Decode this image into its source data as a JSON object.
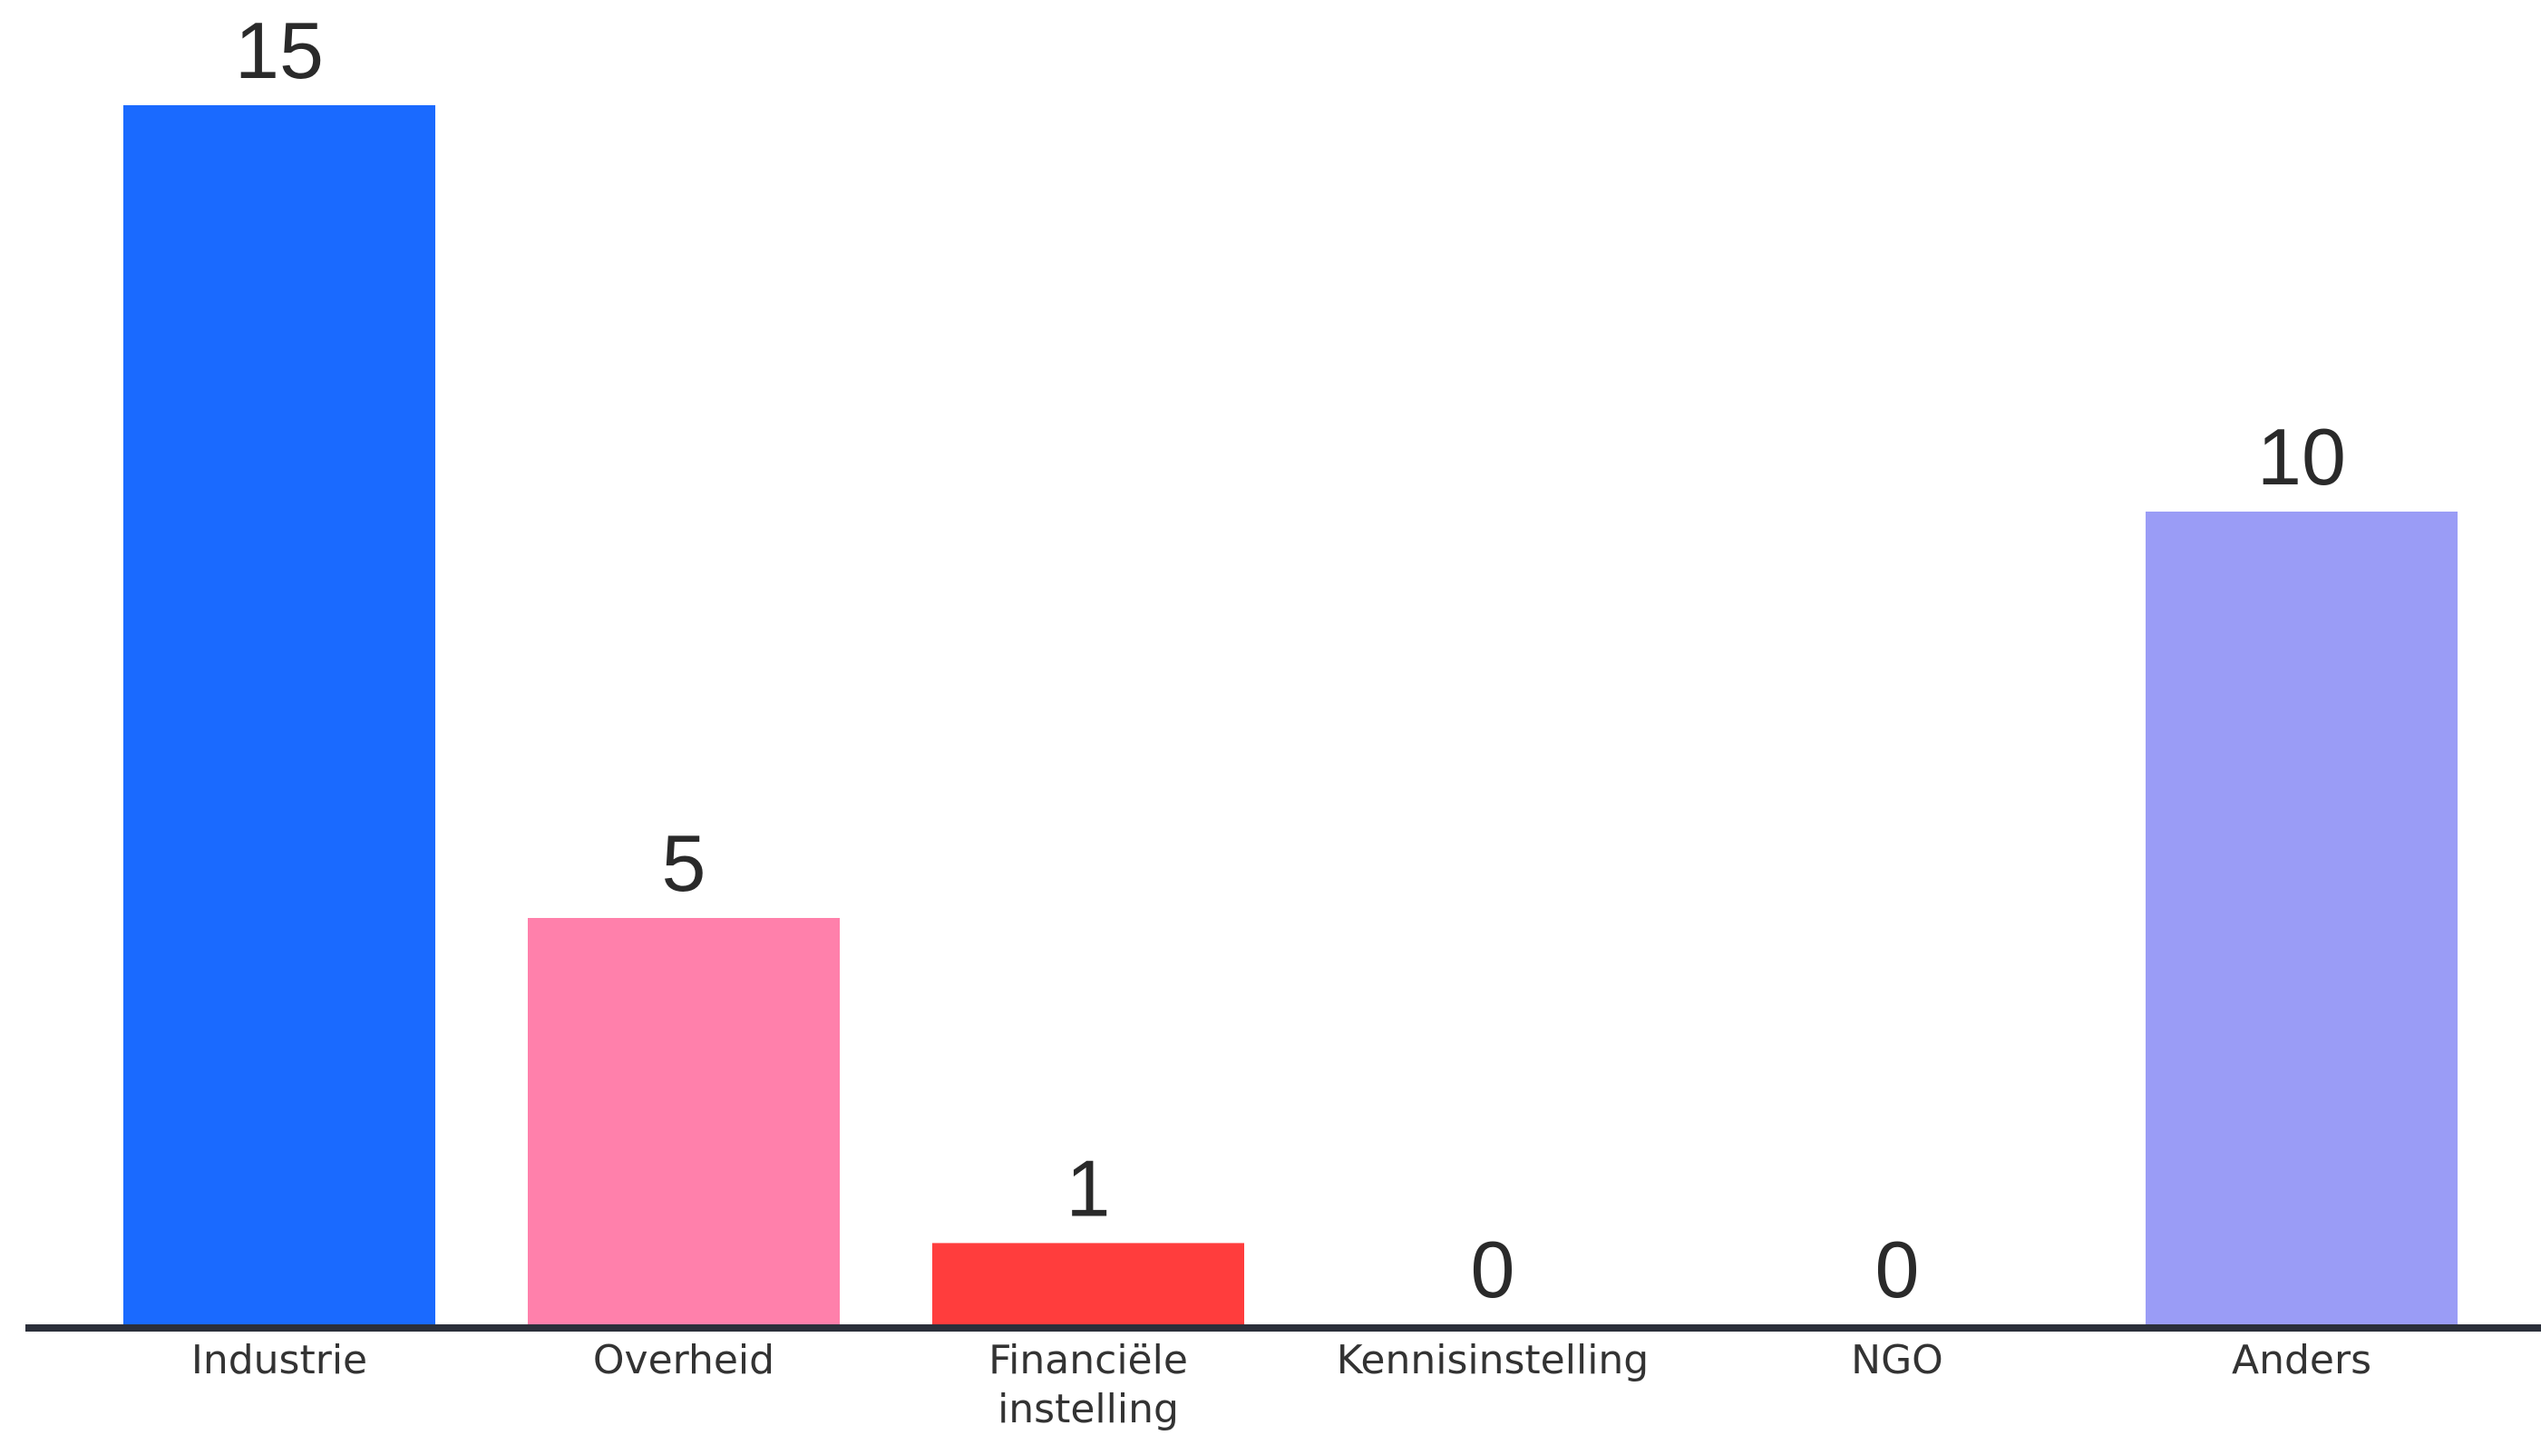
{
  "chart_data": {
    "type": "bar",
    "title": "",
    "xlabel": "",
    "ylabel": "",
    "ylim": [
      0,
      15
    ],
    "grid": false,
    "legend": "none",
    "categories": [
      [
        "Industrie"
      ],
      [
        "Overheid"
      ],
      [
        "Financiële",
        "instelling"
      ],
      [
        "Kennisinstelling"
      ],
      [
        "NGO"
      ],
      [
        "Anders"
      ]
    ],
    "values": [
      15,
      5,
      1,
      0,
      0,
      10
    ],
    "colors": [
      "#1a6aff",
      "#ff80ab",
      "#ff3d3d",
      "#9aa0ff",
      "#9aa0ff",
      "#9a9cf6"
    ],
    "axis_color": "#2b2f3a"
  }
}
